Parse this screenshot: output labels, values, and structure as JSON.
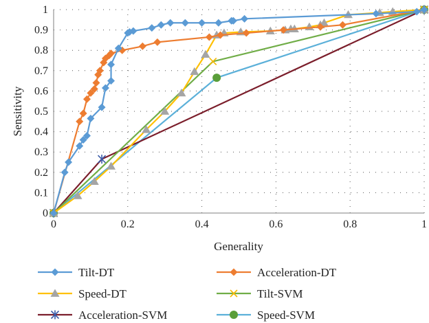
{
  "chart_data": {
    "type": "line",
    "title": "",
    "xlabel": "Generality",
    "ylabel": "Sensitivity",
    "xlim": [
      0,
      1
    ],
    "ylim": [
      0,
      1
    ],
    "x_ticks": [
      "0",
      "0.2",
      "0.4",
      "0.6",
      "0.8",
      "1"
    ],
    "y_ticks": [
      "0",
      "0.1",
      "0.2",
      "0.3",
      "0.4",
      "0.5",
      "0.6",
      "0.7",
      "0.8",
      "0.9",
      "1"
    ],
    "grid": "dotted horizontal and vertical",
    "legend_position": "bottom",
    "series": [
      {
        "name": "Tilt-DT",
        "color": "#5B9BD5",
        "marker": "diamond",
        "x": [
          0,
          0.03,
          0.04,
          0.07,
          0.08,
          0.09,
          0.1,
          0.13,
          0.14,
          0.155,
          0.155,
          0.175,
          0.2,
          0.205,
          0.215,
          0.265,
          0.29,
          0.315,
          0.355,
          0.4,
          0.445,
          0.48,
          0.485,
          0.515,
          0.87,
          0.98,
          1
        ],
        "y": [
          0,
          0.2,
          0.25,
          0.33,
          0.36,
          0.38,
          0.465,
          0.52,
          0.615,
          0.65,
          0.73,
          0.81,
          0.885,
          0.89,
          0.895,
          0.91,
          0.925,
          0.935,
          0.935,
          0.935,
          0.935,
          0.945,
          0.945,
          0.955,
          0.98,
          0.99,
          1
        ]
      },
      {
        "name": "Acceleration-DT",
        "color": "#ED7D31",
        "marker": "diamond",
        "x": [
          0,
          0.07,
          0.08,
          0.09,
          0.1,
          0.11,
          0.115,
          0.12,
          0.125,
          0.135,
          0.14,
          0.15,
          0.155,
          0.185,
          0.24,
          0.28,
          0.42,
          0.45,
          0.52,
          0.62,
          0.72,
          0.78,
          1
        ],
        "y": [
          0,
          0.45,
          0.49,
          0.56,
          0.59,
          0.61,
          0.64,
          0.68,
          0.7,
          0.74,
          0.76,
          0.775,
          0.785,
          0.8,
          0.82,
          0.84,
          0.865,
          0.875,
          0.885,
          0.9,
          0.915,
          0.925,
          1
        ]
      },
      {
        "name": "Speed-DT",
        "color": "#FFC000",
        "marker": "triangle",
        "x": [
          0,
          0.065,
          0.11,
          0.155,
          0.25,
          0.3,
          0.345,
          0.38,
          0.41,
          0.44,
          0.46,
          0.505,
          0.585,
          0.625,
          0.64,
          0.65,
          0.69,
          0.72,
          0.73,
          0.795,
          0.88,
          0.915,
          1
        ],
        "y": [
          0,
          0.085,
          0.155,
          0.23,
          0.41,
          0.5,
          0.59,
          0.695,
          0.78,
          0.875,
          0.885,
          0.89,
          0.895,
          0.9,
          0.905,
          0.905,
          0.915,
          0.925,
          0.935,
          0.975,
          0.985,
          0.99,
          1
        ]
      },
      {
        "name": "Tilt-SVM",
        "color": "#70AD47",
        "marker": "x",
        "x": [
          0,
          0.43,
          1
        ],
        "y": [
          0,
          0.745,
          1
        ]
      },
      {
        "name": "Acceleration-SVM",
        "color": "#7B1E2B",
        "marker": "star",
        "x": [
          0,
          0.13,
          1
        ],
        "y": [
          0,
          0.265,
          1
        ]
      },
      {
        "name": "Speed-SVM",
        "color": "#5BB0D9",
        "marker": "circle",
        "x": [
          0,
          0.44,
          1
        ],
        "y": [
          0,
          0.665,
          1
        ]
      }
    ]
  },
  "marker_colors": {
    "Tilt-SVM": "#F5B800",
    "Acceleration-SVM": "#3A5BA8",
    "Speed-SVM": "#5A9E3A",
    "Speed-DT": "#A5A5A5"
  }
}
